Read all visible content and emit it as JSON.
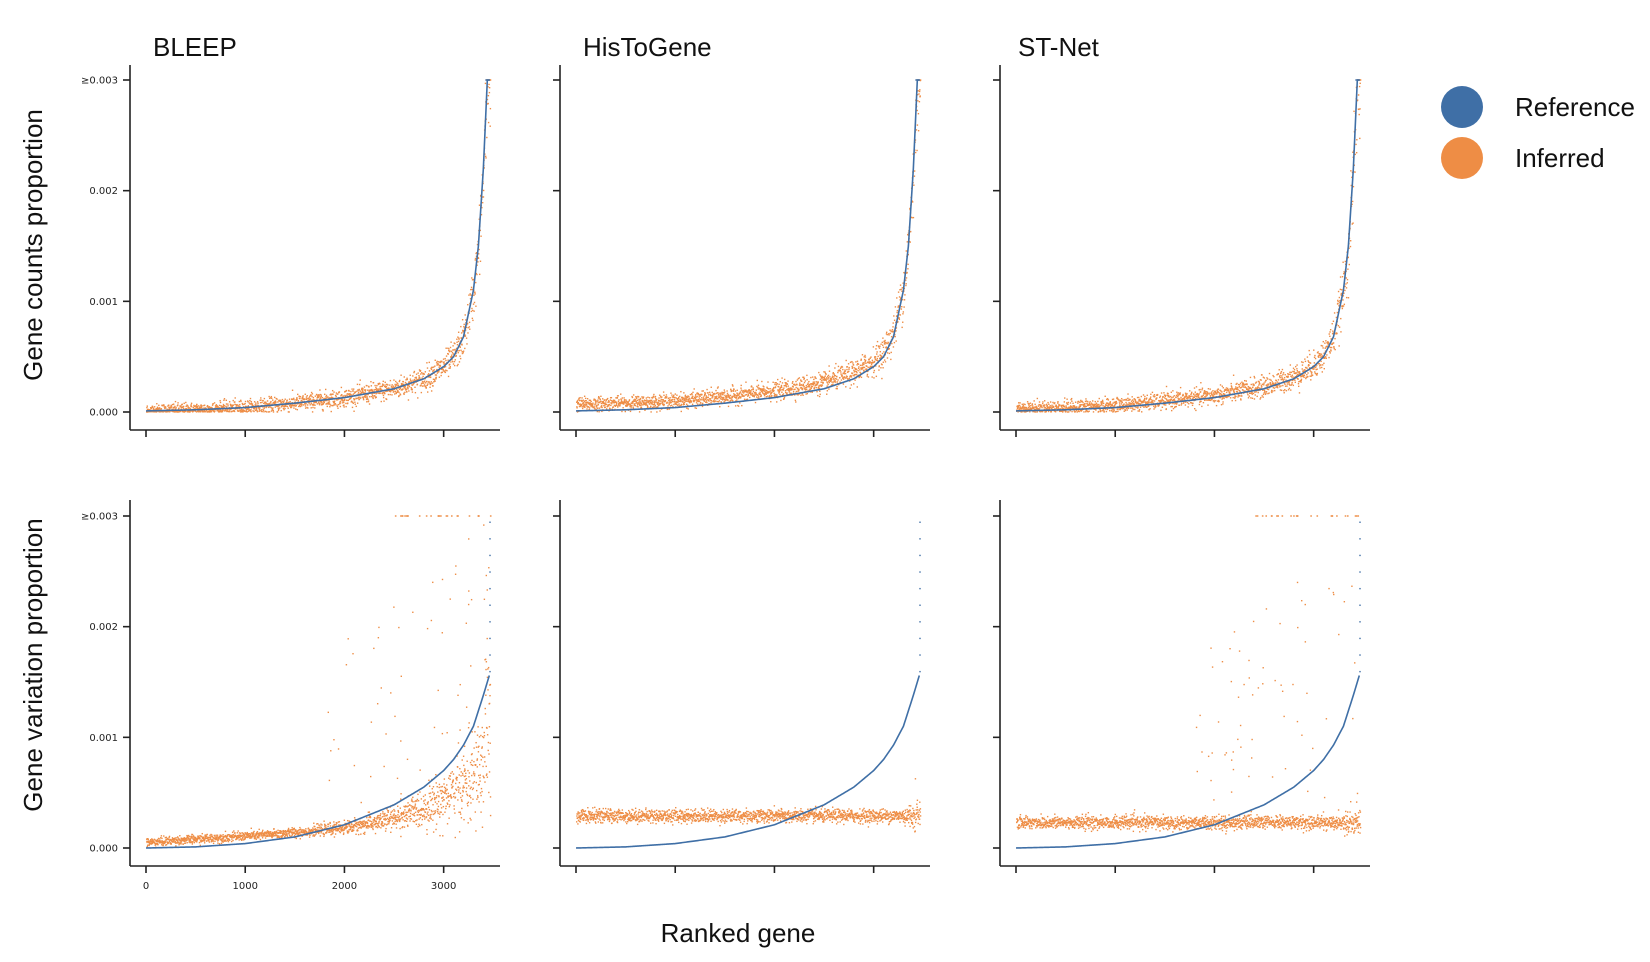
{
  "colors": {
    "reference": "#3f6fa6",
    "inferred": "#ee8d45"
  },
  "chart_data": {
    "type": "scatter",
    "title": "",
    "xlabel": "Ranked gene",
    "xlim": [
      0,
      3467
    ],
    "ylim": [
      0,
      0.003
    ],
    "x_ticks": [
      0,
      1000,
      2000,
      3000
    ],
    "x_tick_labels": [
      "0",
      "1000",
      "2000",
      "3000"
    ],
    "y_ticks": [
      0,
      0.001,
      0.002,
      0.003
    ],
    "y_tick_labels": [
      "0.000",
      "0.001",
      "0.002",
      "≥0.003"
    ],
    "columns": [
      "BLEEP",
      "HisToGene",
      "ST-Net"
    ],
    "rows": [
      "Gene counts proportion",
      "Gene variation proportion"
    ],
    "legend": {
      "position": "right",
      "entries": [
        "Reference",
        "Inferred"
      ]
    },
    "series": [
      {
        "name": "Reference",
        "description_rows": "Reference counts curve rising from ~0 to ≥0.003; reference variation curve rising to ~0.0016",
        "counts": {
          "x": [
            0,
            500,
            1000,
            1500,
            2000,
            2500,
            2800,
            3000,
            3100,
            3200,
            3300,
            3350,
            3400,
            3440,
            3467
          ],
          "y": [
            1e-05,
            2e-05,
            4e-05,
            8e-05,
            0.00013,
            0.00021,
            0.0003,
            0.00041,
            0.0005,
            0.00068,
            0.0011,
            0.0015,
            0.0022,
            0.003,
            0.003
          ]
        },
        "variation": {
          "x": [
            0,
            500,
            1000,
            1500,
            2000,
            2500,
            2800,
            3000,
            3100,
            3200,
            3300,
            3400,
            3467
          ],
          "y": [
            0.0,
            1e-05,
            4e-05,
            0.0001,
            0.00021,
            0.00039,
            0.00055,
            0.0007,
            0.0008,
            0.00093,
            0.0011,
            0.00138,
            0.00158
          ]
        }
      }
    ],
    "panels": [
      {
        "row": 0,
        "col": 0,
        "inferred_model": "counts_fit",
        "noise": 3e-05,
        "offset": 0.0
      },
      {
        "row": 0,
        "col": 1,
        "inferred_model": "counts_fit",
        "noise": 3e-05,
        "offset": 6e-05
      },
      {
        "row": 0,
        "col": 2,
        "inferred_model": "counts_fit",
        "noise": 3e-05,
        "offset": 2e-05
      },
      {
        "row": 1,
        "col": 0,
        "inferred_model": "low_rise",
        "level": 5e-05,
        "noise": 3e-05
      },
      {
        "row": 1,
        "col": 1,
        "inferred_model": "flat",
        "level": 0.00029,
        "noise": 3e-05
      },
      {
        "row": 1,
        "col": 2,
        "inferred_model": "flat",
        "level": 0.00023,
        "noise": 3e-05
      }
    ]
  }
}
